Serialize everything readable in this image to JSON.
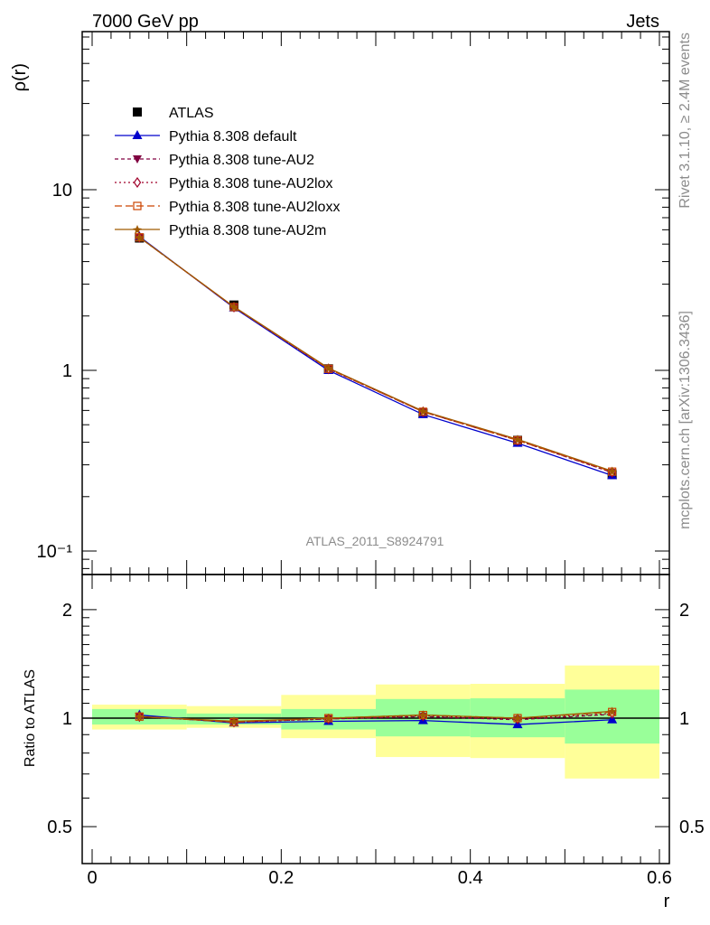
{
  "header": {
    "left_title": "7000 GeV pp",
    "right_title": "Jets"
  },
  "side_labels": {
    "rivet": "Rivet 3.1.10, ≥ 2.4M events",
    "mcplots": "mcplots.cern.ch [arXiv:1306.3436]"
  },
  "watermark": "ATLAS_2011_S8924791",
  "colors": {
    "atlas": "#000000",
    "default": "#0000cc",
    "au2": "#800040",
    "au2lox": "#a0002a",
    "au2loxx": "#cc4400",
    "au2m": "#a05a00",
    "band_inner": "#99ff99",
    "band_outer": "#ffff99"
  },
  "legend": [
    {
      "key": "atlas",
      "label": "ATLAS"
    },
    {
      "key": "default",
      "label": "Pythia 8.308 default"
    },
    {
      "key": "au2",
      "label": "Pythia 8.308 tune-AU2"
    },
    {
      "key": "au2lox",
      "label": "Pythia 8.308 tune-AU2lox"
    },
    {
      "key": "au2loxx",
      "label": "Pythia 8.308 tune-AU2loxx"
    },
    {
      "key": "au2m",
      "label": "Pythia 8.308 tune-AU2m"
    }
  ],
  "chart_data": [
    {
      "type": "line",
      "title": "",
      "xlabel": "r",
      "ylabel": "ρ(r)",
      "yscale": "log",
      "xlim": [
        0,
        0.6
      ],
      "ylim": [
        0.08,
        100
      ],
      "ytick_labels": [
        "10⁻¹",
        "1",
        "10"
      ],
      "x": [
        0.05,
        0.15,
        0.25,
        0.35,
        0.45,
        0.55
      ],
      "series": [
        {
          "key": "atlas",
          "name": "ATLAS",
          "values": [
            5.4,
            2.3,
            1.02,
            0.58,
            0.41,
            0.265
          ]
        },
        {
          "key": "default",
          "name": "Pythia 8.308 default",
          "values": [
            5.5,
            2.22,
            1.0,
            0.57,
            0.395,
            0.262
          ]
        },
        {
          "key": "au2",
          "name": "Pythia 8.308 tune-AU2",
          "values": [
            5.45,
            2.24,
            1.02,
            0.59,
            0.41,
            0.272
          ]
        },
        {
          "key": "au2lox",
          "name": "Pythia 8.308 tune-AU2lox",
          "values": [
            5.45,
            2.24,
            1.02,
            0.59,
            0.41,
            0.273
          ]
        },
        {
          "key": "au2loxx",
          "name": "Pythia 8.308 tune-AU2loxx",
          "values": [
            5.45,
            2.24,
            1.02,
            0.59,
            0.41,
            0.275
          ]
        },
        {
          "key": "au2m",
          "name": "Pythia 8.308 tune-AU2m",
          "values": [
            5.45,
            2.25,
            1.03,
            0.595,
            0.415,
            0.277
          ]
        }
      ]
    },
    {
      "type": "line",
      "title": "",
      "xlabel": "r",
      "ylabel": "Ratio to ATLAS",
      "xlim": [
        0,
        0.6
      ],
      "ylim": [
        0.4,
        2.4
      ],
      "xtick_labels": [
        "0",
        "0.2",
        "0.4",
        "0.6"
      ],
      "ytick_labels": [
        "0.5",
        "1",
        "2"
      ],
      "bins": [
        [
          0,
          0.1
        ],
        [
          0.1,
          0.2
        ],
        [
          0.2,
          0.3
        ],
        [
          0.3,
          0.4
        ],
        [
          0.4,
          0.5
        ],
        [
          0.5,
          0.6
        ]
      ],
      "band_inner": [
        [
          0.96,
          1.06
        ],
        [
          0.96,
          1.03
        ],
        [
          0.93,
          1.06
        ],
        [
          0.89,
          1.13
        ],
        [
          0.885,
          1.135
        ],
        [
          0.85,
          1.2
        ]
      ],
      "band_outer": [
        [
          0.93,
          1.09
        ],
        [
          0.94,
          1.08
        ],
        [
          0.88,
          1.16
        ],
        [
          0.78,
          1.24
        ],
        [
          0.775,
          1.245
        ],
        [
          0.68,
          1.4
        ]
      ],
      "x": [
        0.05,
        0.15,
        0.25,
        0.35,
        0.45,
        0.55
      ],
      "series": [
        {
          "key": "default",
          "name": "Pythia 8.308 default",
          "values": [
            1.02,
            0.97,
            0.98,
            0.985,
            0.96,
            0.99
          ]
        },
        {
          "key": "au2",
          "name": "Pythia 8.308 tune-AU2",
          "values": [
            1.01,
            0.975,
            0.995,
            1.01,
            0.99,
            1.025
          ]
        },
        {
          "key": "au2lox",
          "name": "Pythia 8.308 tune-AU2lox",
          "values": [
            1.01,
            0.975,
            0.995,
            1.015,
            0.995,
            1.03
          ]
        },
        {
          "key": "au2loxx",
          "name": "Pythia 8.308 tune-AU2loxx",
          "values": [
            1.01,
            0.975,
            1.0,
            1.02,
            1.0,
            1.04
          ]
        },
        {
          "key": "au2m",
          "name": "Pythia 8.308 tune-AU2m",
          "values": [
            1.01,
            0.98,
            1.0,
            1.02,
            1.0,
            1.045
          ]
        }
      ]
    }
  ]
}
